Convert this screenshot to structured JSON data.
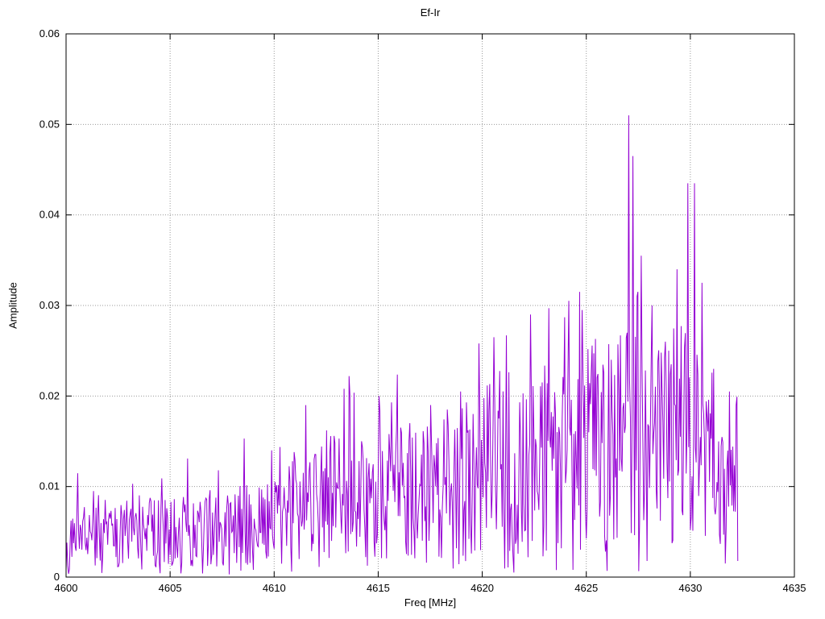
{
  "chart_data": {
    "type": "line",
    "title": "Ef-Ir",
    "xlabel": "Freq [MHz]",
    "ylabel": "Amplitude",
    "xlim": [
      4600,
      4635
    ],
    "ylim": [
      0,
      0.06
    ],
    "xticks": [
      4600,
      4605,
      4610,
      4615,
      4620,
      4625,
      4630,
      4635
    ],
    "yticks": [
      0,
      0.01,
      0.02,
      0.03,
      0.04,
      0.05,
      0.06
    ],
    "ytick_labels": [
      "0",
      "0.01",
      "0.02",
      "0.03",
      "0.04",
      "0.05",
      "0.06"
    ],
    "grid": "dotted",
    "grid_color": "#9a9a9a",
    "legend": "none",
    "line_color": "#9400d3",
    "series_name": "Ef-Ir",
    "x_range_data": [
      4600,
      4632.3
    ],
    "sample_step": 0.04,
    "noise_seed": 20240613,
    "trend": [
      [
        4600,
        0.003
      ],
      [
        4600.5,
        0.0045
      ],
      [
        4602,
        0.005
      ],
      [
        4604,
        0.0048
      ],
      [
        4606,
        0.005
      ],
      [
        4608,
        0.0055
      ],
      [
        4610,
        0.0058
      ],
      [
        4611,
        0.007
      ],
      [
        4612,
        0.008
      ],
      [
        4613,
        0.0085
      ],
      [
        4614,
        0.008
      ],
      [
        4615,
        0.0088
      ],
      [
        4616,
        0.009
      ],
      [
        4617,
        0.0092
      ],
      [
        4618,
        0.01
      ],
      [
        4619,
        0.0105
      ],
      [
        4620,
        0.0115
      ],
      [
        4621,
        0.012
      ],
      [
        4622,
        0.0125
      ],
      [
        4623,
        0.013
      ],
      [
        4624,
        0.0125
      ],
      [
        4625,
        0.0135
      ],
      [
        4626,
        0.014
      ],
      [
        4627,
        0.015
      ],
      [
        4628,
        0.0135
      ],
      [
        4629,
        0.0145
      ],
      [
        4630,
        0.0155
      ],
      [
        4631,
        0.0135
      ],
      [
        4631.5,
        0.011
      ],
      [
        4632.3,
        0.008
      ]
    ],
    "peaks": [
      [
        4601.3,
        0.0095
      ],
      [
        4603.2,
        0.0103
      ],
      [
        4604.6,
        0.0109
      ],
      [
        4605.85,
        0.0131
      ],
      [
        4607.3,
        0.0118
      ],
      [
        4608.55,
        0.0153
      ],
      [
        4609.9,
        0.014
      ],
      [
        4610.9,
        0.0128
      ],
      [
        4611.5,
        0.019
      ],
      [
        4612.5,
        0.0162
      ],
      [
        4613.35,
        0.0208
      ],
      [
        4614.2,
        0.015
      ],
      [
        4615.05,
        0.02
      ],
      [
        4615.65,
        0.0193
      ],
      [
        4616.5,
        0.017
      ],
      [
        4617.5,
        0.019
      ],
      [
        4618.3,
        0.0185
      ],
      [
        4618.95,
        0.0205
      ],
      [
        4619.85,
        0.0258
      ],
      [
        4620.55,
        0.0265
      ],
      [
        4621.15,
        0.0267
      ],
      [
        4622.3,
        0.029
      ],
      [
        4623.2,
        0.0297
      ],
      [
        4623.95,
        0.0287
      ],
      [
        4624.8,
        0.0295
      ],
      [
        4625.45,
        0.0263
      ],
      [
        4626.2,
        0.024
      ],
      [
        4627.05,
        0.051
      ],
      [
        4627.25,
        0.0465
      ],
      [
        4627.45,
        0.031
      ],
      [
        4627.65,
        0.0355
      ],
      [
        4628.15,
        0.03
      ],
      [
        4628.8,
        0.026
      ],
      [
        4629.35,
        0.034
      ],
      [
        4629.9,
        0.0435
      ],
      [
        4630.2,
        0.0435
      ],
      [
        4630.55,
        0.0325
      ],
      [
        4631.1,
        0.023
      ],
      [
        4631.9,
        0.0205
      ],
      [
        4632.2,
        0.019
      ]
    ],
    "dips": [
      [
        4606.55,
        0.0004
      ],
      [
        4609.0,
        0.0008
      ],
      [
        4610.85,
        0.0006
      ],
      [
        4621.5,
        0.0005
      ],
      [
        4624.35,
        0.0008
      ],
      [
        4631.7,
        0.0015
      ]
    ]
  }
}
